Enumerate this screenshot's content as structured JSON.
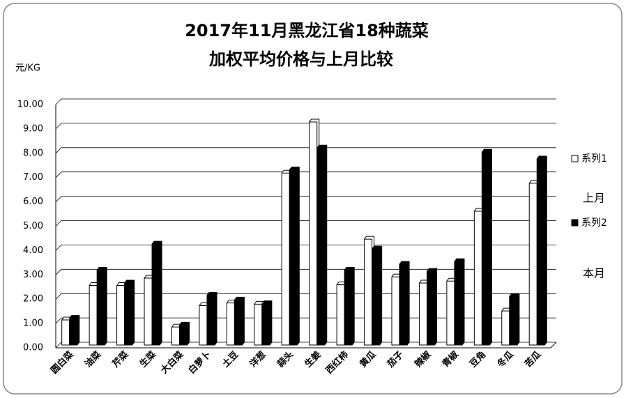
{
  "chart_data": {
    "type": "bar",
    "title_lines": [
      "2017年11月黑龙江省18种蔬菜",
      "加权平均价格与上月比较"
    ],
    "y_axis_label": "元/KG",
    "categories": [
      "圆白菜",
      "油菜",
      "芹菜",
      "生菜",
      "大白菜",
      "白萝卜",
      "土豆",
      "洋葱",
      "蒜头",
      "生姜",
      "西红柿",
      "黄瓜",
      "茄子",
      "辣椒",
      "青椒",
      "豆角",
      "冬瓜",
      "苦瓜"
    ],
    "series": [
      {
        "name": "系列1",
        "color": "#ffffff",
        "values": [
          1.03,
          2.45,
          2.45,
          2.75,
          0.74,
          1.62,
          1.73,
          1.68,
          7.07,
          9.17,
          2.48,
          4.35,
          2.8,
          2.55,
          2.63,
          5.5,
          1.4,
          6.65
        ]
      },
      {
        "name": "系列2",
        "color": "#000000",
        "values": [
          1.1,
          3.08,
          2.55,
          4.15,
          0.82,
          2.05,
          1.85,
          1.7,
          7.2,
          8.1,
          3.08,
          3.95,
          3.32,
          3.03,
          3.43,
          7.93,
          2.0,
          7.65
        ]
      }
    ],
    "legend_notes": [
      "上月",
      "本月"
    ],
    "ylim": [
      0,
      10
    ],
    "yticks": [
      {
        "value": 0,
        "label": "0.00"
      },
      {
        "value": 1,
        "label": "1.00"
      },
      {
        "value": 2,
        "label": "2.00"
      },
      {
        "value": 3,
        "label": "3.00"
      },
      {
        "value": 4,
        "label": "4.00"
      },
      {
        "value": 5,
        "label": "5.00"
      },
      {
        "value": 6,
        "label": "6.00"
      },
      {
        "value": 7,
        "label": "7.00"
      },
      {
        "value": 8,
        "label": "8.00"
      },
      {
        "value": 9,
        "label": "9.00"
      },
      {
        "value": 10,
        "label": "10.00"
      }
    ],
    "grid": true
  }
}
